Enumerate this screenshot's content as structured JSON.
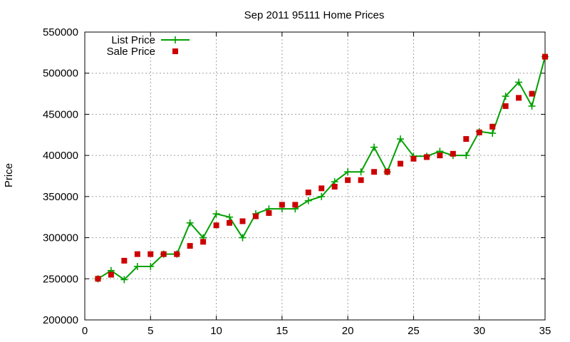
{
  "chart_data": {
    "type": "line",
    "title": "Sep 2011 95111 Home Prices",
    "xlabel": "",
    "ylabel": "Price",
    "xlim": [
      0,
      35
    ],
    "ylim": [
      200000,
      550000
    ],
    "x_ticks": [
      "0",
      "5",
      "10",
      "15",
      "20",
      "25",
      "30",
      "35"
    ],
    "y_ticks": [
      "200000",
      "250000",
      "300000",
      "350000",
      "400000",
      "450000",
      "500000",
      "550000"
    ],
    "grid": true,
    "legend_position": "top-left",
    "series": [
      {
        "name": "List Price",
        "style": "line with plus markers",
        "color": "#00a000",
        "points": [
          [
            1,
            250000
          ],
          [
            2,
            260000
          ],
          [
            3,
            249000
          ],
          [
            4,
            265000
          ],
          [
            5,
            265000
          ],
          [
            6,
            280000
          ],
          [
            7,
            280000
          ],
          [
            8,
            318000
          ],
          [
            9,
            300000
          ],
          [
            10,
            329000
          ],
          [
            11,
            325000
          ],
          [
            12,
            300000
          ],
          [
            13,
            329000
          ],
          [
            14,
            335000
          ],
          [
            15,
            335000
          ],
          [
            16,
            335000
          ],
          [
            17,
            345000
          ],
          [
            18,
            350000
          ],
          [
            19,
            368000
          ],
          [
            20,
            380000
          ],
          [
            21,
            380000
          ],
          [
            22,
            410000
          ],
          [
            23,
            380000
          ],
          [
            24,
            420000
          ],
          [
            25,
            399000
          ],
          [
            26,
            399000
          ],
          [
            27,
            405000
          ],
          [
            28,
            400000
          ],
          [
            29,
            400000
          ],
          [
            30,
            429000
          ],
          [
            31,
            427000
          ],
          [
            32,
            472000
          ],
          [
            33,
            489000
          ],
          [
            34,
            460000
          ],
          [
            35,
            520000
          ]
        ]
      },
      {
        "name": "Sale Price",
        "style": "square markers",
        "color": "#cc0000",
        "points": [
          [
            1,
            250000
          ],
          [
            2,
            255000
          ],
          [
            3,
            272000
          ],
          [
            4,
            280000
          ],
          [
            5,
            280000
          ],
          [
            6,
            280000
          ],
          [
            7,
            280000
          ],
          [
            8,
            290000
          ],
          [
            9,
            295000
          ],
          [
            10,
            315000
          ],
          [
            11,
            318000
          ],
          [
            12,
            320000
          ],
          [
            13,
            326000
          ],
          [
            14,
            330000
          ],
          [
            15,
            340000
          ],
          [
            16,
            340000
          ],
          [
            17,
            355000
          ],
          [
            18,
            360000
          ],
          [
            19,
            362000
          ],
          [
            20,
            370000
          ],
          [
            21,
            370000
          ],
          [
            22,
            380000
          ],
          [
            23,
            380000
          ],
          [
            24,
            390000
          ],
          [
            25,
            396000
          ],
          [
            26,
            398000
          ],
          [
            27,
            400000
          ],
          [
            28,
            402000
          ],
          [
            29,
            420000
          ],
          [
            30,
            428000
          ],
          [
            31,
            435000
          ],
          [
            32,
            460000
          ],
          [
            33,
            470000
          ],
          [
            34,
            475000
          ],
          [
            35,
            520000
          ]
        ]
      }
    ]
  }
}
